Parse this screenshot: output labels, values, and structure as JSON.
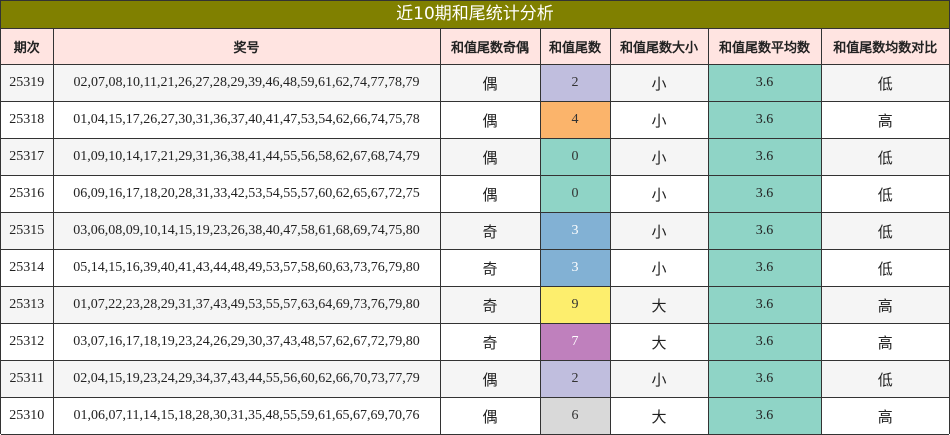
{
  "title": "近10期和尾统计分析",
  "headers": [
    "期次",
    "奖号",
    "和值尾数奇偶",
    "和值尾数",
    "和值尾数大小",
    "和值尾数平均数",
    "和值尾数均数对比"
  ],
  "rows": [
    {
      "issue": "25319",
      "numbers": "02,07,08,10,11,21,26,27,28,29,39,46,48,59,61,62,74,77,78,79",
      "parity": "偶",
      "tail": "2",
      "tail_bg": "#c0bede",
      "tail_fg": "#333333",
      "size": "小",
      "avg": "3.6",
      "compare": "低"
    },
    {
      "issue": "25318",
      "numbers": "01,04,15,17,26,27,30,31,36,37,40,41,47,53,54,62,66,74,75,78",
      "parity": "偶",
      "tail": "4",
      "tail_bg": "#fbb46b",
      "tail_fg": "#333333",
      "size": "小",
      "avg": "3.6",
      "compare": "高"
    },
    {
      "issue": "25317",
      "numbers": "01,09,10,14,17,21,29,31,36,38,41,44,55,56,58,62,67,68,74,79",
      "parity": "偶",
      "tail": "0",
      "tail_bg": "#8fd4c6",
      "tail_fg": "#333333",
      "size": "小",
      "avg": "3.6",
      "compare": "低"
    },
    {
      "issue": "25316",
      "numbers": "06,09,16,17,18,20,28,31,33,42,53,54,55,57,60,62,65,67,72,75",
      "parity": "偶",
      "tail": "0",
      "tail_bg": "#8fd4c6",
      "tail_fg": "#333333",
      "size": "小",
      "avg": "3.6",
      "compare": "低"
    },
    {
      "issue": "25315",
      "numbers": "03,06,08,09,10,14,15,19,23,26,38,40,47,58,61,68,69,74,75,80",
      "parity": "奇",
      "tail": "3",
      "tail_bg": "#82b1d4",
      "tail_fg": "#ffffff",
      "size": "小",
      "avg": "3.6",
      "compare": "低"
    },
    {
      "issue": "25314",
      "numbers": "05,14,15,16,39,40,41,43,44,48,49,53,57,58,60,63,73,76,79,80",
      "parity": "奇",
      "tail": "3",
      "tail_bg": "#82b1d4",
      "tail_fg": "#ffffff",
      "size": "小",
      "avg": "3.6",
      "compare": "低"
    },
    {
      "issue": "25313",
      "numbers": "01,07,22,23,28,29,31,37,43,49,53,55,57,63,64,69,73,76,79,80",
      "parity": "奇",
      "tail": "9",
      "tail_bg": "#fdee6d",
      "tail_fg": "#333333",
      "size": "大",
      "avg": "3.6",
      "compare": "高"
    },
    {
      "issue": "25312",
      "numbers": "03,07,16,17,18,19,23,24,26,29,30,37,43,48,57,62,67,72,79,80",
      "parity": "奇",
      "tail": "7",
      "tail_bg": "#bf80bd",
      "tail_fg": "#ffffff",
      "size": "大",
      "avg": "3.6",
      "compare": "高"
    },
    {
      "issue": "25311",
      "numbers": "02,04,15,19,23,24,29,34,37,43,44,55,56,60,62,66,70,73,77,79",
      "parity": "偶",
      "tail": "2",
      "tail_bg": "#c0bede",
      "tail_fg": "#333333",
      "size": "小",
      "avg": "3.6",
      "compare": "低"
    },
    {
      "issue": "25310",
      "numbers": "01,06,07,11,14,15,18,28,30,31,35,48,55,59,61,65,67,69,70,76",
      "parity": "偶",
      "tail": "6",
      "tail_bg": "#d9d9d9",
      "tail_fg": "#333333",
      "size": "大",
      "avg": "3.6",
      "compare": "高"
    }
  ]
}
